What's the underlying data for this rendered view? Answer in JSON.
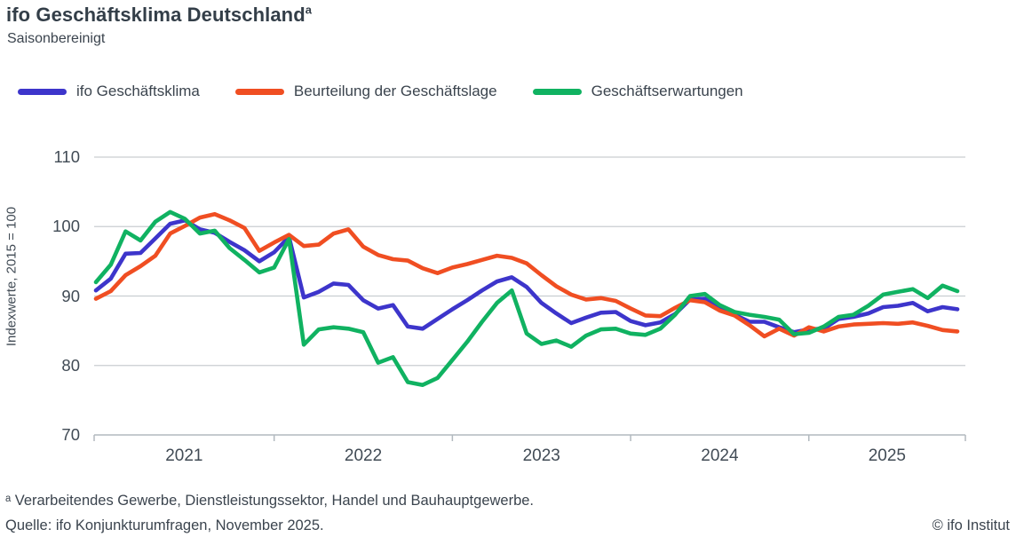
{
  "header": {
    "title_main": "ifo Geschäftsklima Deutschland",
    "title_sup": "a",
    "subtitle": "Saisonbereinigt"
  },
  "footer": {
    "footnote": "ᵃ Verarbeitendes Gewerbe, Dienstleistungssektor, Handel und Bauhauptgewerbe.",
    "source": "Quelle: ifo Konjunkturumfragen, November 2025.",
    "copyright": "© ifo Institut"
  },
  "chart_data": {
    "type": "line",
    "title": "ifo Geschäftsklima Deutschland",
    "subtitle": "Saisonbereinigt",
    "ylabel": "Indexwerte, 2015 = 100",
    "xlabel": "",
    "frequency": "monthly",
    "x_start": "2021-01",
    "x_end": "2025-11",
    "ylim": [
      70,
      110
    ],
    "y_ticks": [
      110,
      100,
      90,
      80,
      70
    ],
    "x_labels": [
      "2021",
      "2022",
      "2023",
      "2024",
      "2025"
    ],
    "grid": "horizontal",
    "legend_position": "top",
    "colors": {
      "klima": "#3d35cb",
      "lage": "#f04e22",
      "erwartungen": "#10b261",
      "gridline": "#c9cdd1",
      "axis": "#b2b9bf",
      "text": "#3b444e"
    },
    "series": [
      {
        "name": "ifo Geschäftsklima",
        "color": "#3d35cb",
        "values": [
          90.8,
          92.5,
          96.1,
          96.2,
          98.3,
          100.4,
          100.9,
          99.6,
          99.1,
          97.8,
          96.6,
          95.0,
          96.3,
          98.5,
          89.8,
          90.6,
          91.8,
          91.6,
          89.4,
          88.2,
          88.7,
          85.6,
          85.3,
          86.7,
          88.1,
          89.4,
          90.8,
          92.1,
          92.7,
          91.3,
          89.0,
          87.5,
          86.1,
          86.9,
          87.6,
          87.7,
          86.4,
          85.8,
          86.2,
          87.4,
          89.5,
          89.6,
          88.2,
          87.3,
          86.3,
          86.3,
          85.5,
          84.8,
          85.2,
          85.3,
          86.7,
          87.0,
          87.5,
          88.4,
          88.6,
          89.0,
          87.8,
          88.4,
          88.1
        ]
      },
      {
        "name": "Beurteilung der Geschäftslage",
        "color": "#f04e22",
        "values": [
          89.6,
          90.7,
          93.0,
          94.3,
          95.8,
          99.0,
          100.1,
          101.3,
          101.8,
          100.9,
          99.8,
          96.5,
          97.7,
          98.8,
          97.2,
          97.4,
          99.0,
          99.6,
          97.1,
          95.9,
          95.3,
          95.1,
          94.0,
          93.3,
          94.1,
          94.6,
          95.2,
          95.8,
          95.5,
          94.7,
          93.0,
          91.4,
          90.2,
          89.5,
          89.7,
          89.3,
          88.2,
          87.2,
          87.1,
          88.3,
          89.4,
          89.1,
          87.9,
          87.2,
          85.8,
          84.2,
          85.3,
          84.3,
          85.5,
          84.9,
          85.6,
          85.9,
          86.0,
          86.1,
          86.0,
          86.2,
          85.7,
          85.1,
          84.9
        ]
      },
      {
        "name": "Geschäftserwartungen",
        "color": "#10b261",
        "values": [
          92.0,
          94.5,
          99.3,
          98.0,
          100.7,
          102.1,
          101.1,
          99.0,
          99.4,
          96.9,
          95.2,
          93.4,
          94.1,
          98.2,
          83.0,
          85.2,
          85.5,
          85.3,
          84.8,
          80.4,
          81.2,
          77.6,
          77.2,
          78.2,
          80.8,
          83.4,
          86.3,
          89.0,
          90.8,
          84.6,
          83.1,
          83.6,
          82.7,
          84.3,
          85.2,
          85.3,
          84.6,
          84.4,
          85.3,
          87.3,
          90.0,
          90.3,
          88.7,
          87.7,
          87.3,
          87.0,
          86.6,
          84.5,
          84.7,
          85.6,
          87.0,
          87.3,
          88.6,
          90.2,
          90.6,
          91.0,
          89.7,
          91.5,
          90.7
        ]
      }
    ]
  }
}
